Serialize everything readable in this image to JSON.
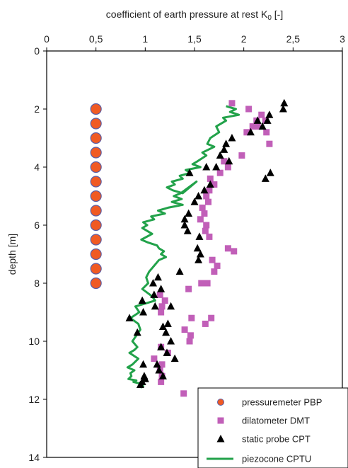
{
  "chart_data": {
    "type": "scatter",
    "title": "",
    "xlabel": "coefficient of earth pressure at rest K",
    "xlabel_sub": "0",
    "xlabel_tail": " [-]",
    "ylabel": "depth [m]",
    "xlim": [
      0,
      3
    ],
    "ylim": [
      0,
      14
    ],
    "y_inverted": true,
    "x_axis_position": "top",
    "grid": false,
    "legend_position": "bottom-right",
    "x_ticks": [
      "0",
      "0,5",
      "1",
      "1,5",
      "2",
      "2,5",
      "3"
    ],
    "y_ticks": [
      "0",
      "2",
      "4",
      "6",
      "8",
      "10",
      "12",
      "14"
    ],
    "series": [
      {
        "name": "pressuremeter PBP",
        "marker": "circle",
        "color": "#f05a23",
        "edge": "#5b5ea6",
        "x": [
          0.5,
          0.5,
          0.5,
          0.5,
          0.5,
          0.5,
          0.5,
          0.5,
          0.5,
          0.5,
          0.5,
          0.5,
          0.5
        ],
        "y": [
          2.0,
          2.5,
          3.0,
          3.5,
          4.0,
          4.5,
          5.0,
          5.5,
          6.0,
          6.5,
          7.0,
          7.5,
          8.0
        ]
      },
      {
        "name": "dilatometer DMT",
        "marker": "square",
        "color": "#c15fb8",
        "x": [
          1.88,
          2.05,
          2.18,
          2.13,
          2.22,
          2.09,
          2.14,
          2.23,
          2.03,
          2.26,
          1.98,
          1.8,
          1.84,
          1.76,
          1.66,
          1.7,
          1.65,
          1.62,
          1.64,
          1.58,
          1.6,
          1.56,
          1.62,
          1.61,
          1.65,
          1.84,
          1.9,
          1.68,
          1.73,
          1.7,
          1.57,
          1.63,
          1.44,
          1.15,
          1.2,
          1.17,
          1.16,
          1.47,
          1.67,
          1.61,
          1.4,
          1.46,
          1.45,
          1.16,
          1.23,
          1.09,
          1.17,
          1.15,
          1.17,
          1.16,
          1.39
        ],
        "y": [
          1.8,
          2.0,
          2.2,
          2.4,
          2.4,
          2.6,
          2.6,
          2.8,
          2.8,
          3.2,
          3.6,
          3.8,
          4.0,
          4.2,
          4.4,
          4.6,
          4.8,
          5.0,
          5.2,
          5.4,
          5.6,
          5.8,
          6.0,
          6.2,
          6.4,
          6.8,
          6.9,
          7.2,
          7.4,
          7.6,
          8.0,
          8.0,
          8.2,
          8.4,
          8.6,
          8.8,
          9.0,
          9.2,
          9.2,
          9.4,
          9.6,
          9.8,
          10.0,
          10.2,
          10.4,
          10.6,
          10.8,
          11.0,
          11.2,
          11.4,
          11.8
        ]
      },
      {
        "name": "static probe CPT",
        "marker": "triangle",
        "color": "#000000",
        "x": [
          2.41,
          2.4,
          2.26,
          2.24,
          2.14,
          2.19,
          2.07,
          1.88,
          1.82,
          1.8,
          1.76,
          1.85,
          1.72,
          1.62,
          1.45,
          2.27,
          2.22,
          1.66,
          1.6,
          1.54,
          1.5,
          1.44,
          1.4,
          1.4,
          1.43,
          1.55,
          1.53,
          1.56,
          1.54,
          1.35,
          1.13,
          1.08,
          1.16,
          1.09,
          0.97,
          1.1,
          1.26,
          0.98,
          0.84,
          1.23,
          1.18,
          1.21,
          0.92,
          1.26,
          1.16,
          1.22,
          1.3,
          0.98,
          1.12,
          1.14,
          1.18,
          0.99,
          1.0,
          0.97,
          0.95
        ],
        "y": [
          1.8,
          2.0,
          2.2,
          2.4,
          2.4,
          2.6,
          2.8,
          3.0,
          3.2,
          3.4,
          3.6,
          3.8,
          4.0,
          4.0,
          4.2,
          4.2,
          4.4,
          4.6,
          4.8,
          5.0,
          5.2,
          5.6,
          5.8,
          6.0,
          6.2,
          6.4,
          6.8,
          7.0,
          7.2,
          7.6,
          7.8,
          8.0,
          8.2,
          8.4,
          8.6,
          8.8,
          8.8,
          9.0,
          9.2,
          9.4,
          9.5,
          9.7,
          9.7,
          10.0,
          10.2,
          10.4,
          10.6,
          10.8,
          10.8,
          11.0,
          11.2,
          11.2,
          11.3,
          11.4,
          11.5
        ]
      },
      {
        "name": "piezocone CPTU",
        "marker": "line",
        "color": "#22a24a",
        "x": [
          1.82,
          1.92,
          1.86,
          1.95,
          1.79,
          1.82,
          1.72,
          1.75,
          1.66,
          1.63,
          1.7,
          1.58,
          1.62,
          1.53,
          1.48,
          1.56,
          1.41,
          1.46,
          1.35,
          1.38,
          1.27,
          1.3,
          1.22,
          1.28,
          1.38,
          1.52,
          1.36,
          1.29,
          1.37,
          1.27,
          1.38,
          1.23,
          1.13,
          1.2,
          1.06,
          1.09,
          0.98,
          1.02,
          0.97,
          1.07,
          0.96,
          1.03,
          1.12,
          1.14,
          1.19,
          1.16,
          1.21,
          1.14,
          1.09,
          1.04,
          1.01,
          1.03,
          0.97,
          1.05,
          1.08,
          1.1,
          0.9,
          0.94,
          0.85,
          0.93,
          0.95,
          0.91,
          0.87,
          0.92,
          0.89,
          0.84,
          0.93,
          0.87,
          0.82,
          0.89,
          0.85,
          0.86,
          0.83,
          0.91,
          0.88,
          0.94,
          0.96,
          0.98,
          0.95
        ],
        "y": [
          1.9,
          2.0,
          2.1,
          2.2,
          2.3,
          2.4,
          2.6,
          2.8,
          3.0,
          3.2,
          3.3,
          3.5,
          3.6,
          3.8,
          3.9,
          4.0,
          4.1,
          4.2,
          4.3,
          4.4,
          4.5,
          4.6,
          4.7,
          4.8,
          4.9,
          4.5,
          4.9,
          5.0,
          5.1,
          5.2,
          5.3,
          5.4,
          5.5,
          5.6,
          5.7,
          5.8,
          5.9,
          6.0,
          6.1,
          6.3,
          6.5,
          6.6,
          6.7,
          6.8,
          6.9,
          7.0,
          7.1,
          7.2,
          7.4,
          7.6,
          7.8,
          8.0,
          8.2,
          8.4,
          8.5,
          8.6,
          8.8,
          9.0,
          9.2,
          9.4,
          9.6,
          9.8,
          10.0,
          10.2,
          10.3,
          10.4,
          10.6,
          10.8,
          10.9,
          11.0,
          11.1,
          11.2,
          11.3,
          11.35,
          11.4,
          11.45,
          11.5,
          11.55,
          11.6
        ]
      }
    ]
  }
}
